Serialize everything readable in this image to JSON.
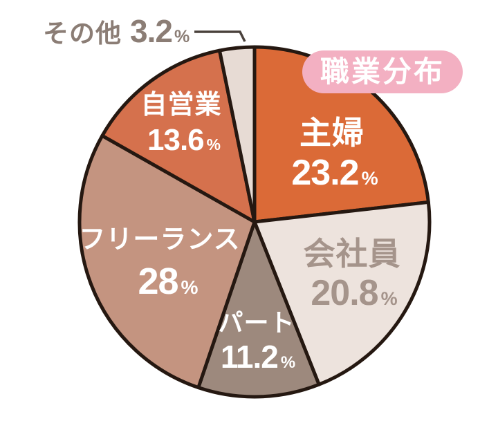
{
  "title_badge": {
    "text": "職業分布",
    "bg_color": "#F3B0C2",
    "text_color": "#FFFFFF"
  },
  "percent_sign": "%",
  "chart_data": {
    "type": "pie",
    "title": "職業分布",
    "start_angle_deg": 0,
    "direction": "clockwise",
    "legend": "none",
    "border_color": "#251811",
    "callout_color": "#4A423C",
    "slices": [
      {
        "label": "主婦",
        "value": 23.2,
        "value_label": "23.2",
        "color": "#DB6A37",
        "label_color": "#FFFFFF"
      },
      {
        "label": "会社員",
        "value": 20.8,
        "value_label": "20.8",
        "color": "#EDE3DD",
        "label_color": "#A5948B"
      },
      {
        "label": "パート",
        "value": 11.2,
        "value_label": "11.2",
        "color": "#9D897D",
        "label_color": "#FFFFFF"
      },
      {
        "label": "フリーランス",
        "value": 28,
        "value_label": "28",
        "color": "#C49480",
        "label_color": "#FFFFFF"
      },
      {
        "label": "自営業",
        "value": 13.6,
        "value_label": "13.6",
        "color": "#D5714D",
        "label_color": "#FFFFFF"
      },
      {
        "label": "その他",
        "value": 3.2,
        "value_label": "3.2",
        "color": "#E7DBD4",
        "label_color": "#8B7D75",
        "callout": true
      }
    ]
  }
}
